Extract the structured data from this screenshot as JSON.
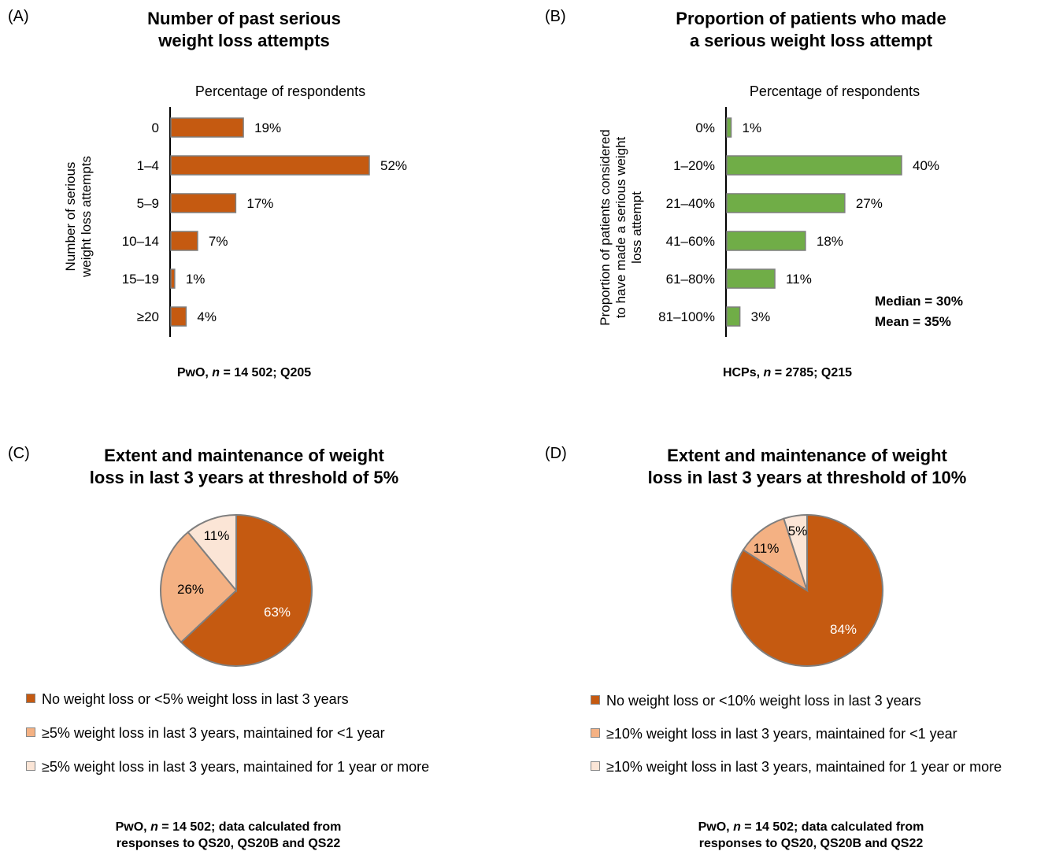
{
  "panelA": {
    "label": "(A)",
    "title": [
      "Number of past serious",
      "weight loss attempts"
    ],
    "subtitle": "Percentage of respondents",
    "ylabel": [
      "Number of serious",
      "weight loss attempts"
    ],
    "footnote": {
      "pre": "PwO, ",
      "n": "n",
      "post": " = 14 502; Q205"
    }
  },
  "panelB": {
    "label": "(B)",
    "title": [
      "Proportion of patients who made",
      "a serious weight loss attempt"
    ],
    "subtitle": "Percentage of respondents",
    "ylabel": [
      "Proportion of patients considered",
      "to have made a serious weight",
      "loss attempt"
    ],
    "median": "Median = 30%",
    "mean": "Mean = 35%",
    "footnote": {
      "pre": "HCPs, ",
      "n": "n",
      "post": " = 2785; Q215"
    }
  },
  "panelC": {
    "label": "(C)",
    "title": [
      "Extent and maintenance of weight",
      "loss in last 3 years at threshold of 5%"
    ],
    "legend": [
      "No weight loss or <5% weight loss in last 3 years",
      "≥5% weight loss in last 3 years, maintained for <1 year",
      "≥5% weight loss in last 3 years, maintained for 1 year or more"
    ],
    "footnote": {
      "pre": "PwO, ",
      "n": "n",
      "post": " = 14 502; data calculated from",
      "line2": "responses to QS20, QS20B and QS22"
    }
  },
  "panelD": {
    "label": "(D)",
    "title": [
      "Extent and maintenance of weight",
      "loss in last 3 years at threshold of 10%"
    ],
    "legend": [
      "No weight loss or <10% weight loss in last 3 years",
      "≥10% weight loss in last 3 years, maintained for <1 year",
      "≥10% weight loss in last 3 years, maintained for 1 year or more"
    ],
    "footnote": {
      "pre": "PwO, ",
      "n": "n",
      "post": " = 14 502; data calculated from",
      "line2": "responses to QS20, QS20B and QS22"
    }
  },
  "colors": {
    "orange": "#c55a11",
    "green": "#70ad47",
    "light_orange": "#f4b183",
    "pale": "#fbe5d6",
    "edge": "#7f7f7f"
  },
  "chart_data": [
    {
      "type": "bar",
      "orientation": "horizontal",
      "title": "Number of past serious weight loss attempts",
      "xlabel": "Percentage of respondents",
      "ylabel": "Number of serious weight loss attempts",
      "categories": [
        "0",
        "1–4",
        "5–9",
        "10–14",
        "15–19",
        "≥20"
      ],
      "values": [
        19,
        52,
        17,
        7,
        1,
        4
      ],
      "labels": [
        "19%",
        "52%",
        "17%",
        "7%",
        "1%",
        "4%"
      ],
      "xlim": [
        0,
        52
      ],
      "color": "#c55a11"
    },
    {
      "type": "bar",
      "orientation": "horizontal",
      "title": "Proportion of patients who made a serious weight loss attempt",
      "xlabel": "Percentage of respondents",
      "ylabel": "Proportion of patients considered to have made a serious weight loss attempt",
      "categories": [
        "0%",
        "1–20%",
        "21–40%",
        "41–60%",
        "61–80%",
        "81–100%"
      ],
      "values": [
        1,
        40,
        27,
        18,
        11,
        3
      ],
      "labels": [
        "1%",
        "40%",
        "27%",
        "18%",
        "11%",
        "3%"
      ],
      "xlim": [
        0,
        40
      ],
      "color": "#70ad47"
    },
    {
      "type": "pie",
      "title": "Extent and maintenance of weight loss in last 3 years at threshold of 5%",
      "categories": [
        "No weight loss or <5% weight loss in last 3 years",
        "≥5% weight loss in last 3 years, maintained for <1 year",
        "≥5% weight loss in last 3 years, maintained for 1 year or more"
      ],
      "values": [
        63,
        26,
        11
      ],
      "labels": [
        "63%",
        "26%",
        "11%"
      ],
      "colors": [
        "#c55a11",
        "#f4b183",
        "#fbe5d6"
      ]
    },
    {
      "type": "pie",
      "title": "Extent and maintenance of weight loss in last 3 years at threshold of 10%",
      "categories": [
        "No weight loss or <10% weight loss in last 3 years",
        "≥10% weight loss in last 3 years, maintained for <1 year",
        "≥10% weight loss in last 3 years, maintained for 1 year or more"
      ],
      "values": [
        84,
        11,
        5
      ],
      "labels": [
        "84%",
        "11%",
        "5%"
      ],
      "colors": [
        "#c55a11",
        "#f4b183",
        "#fbe5d6"
      ]
    }
  ]
}
